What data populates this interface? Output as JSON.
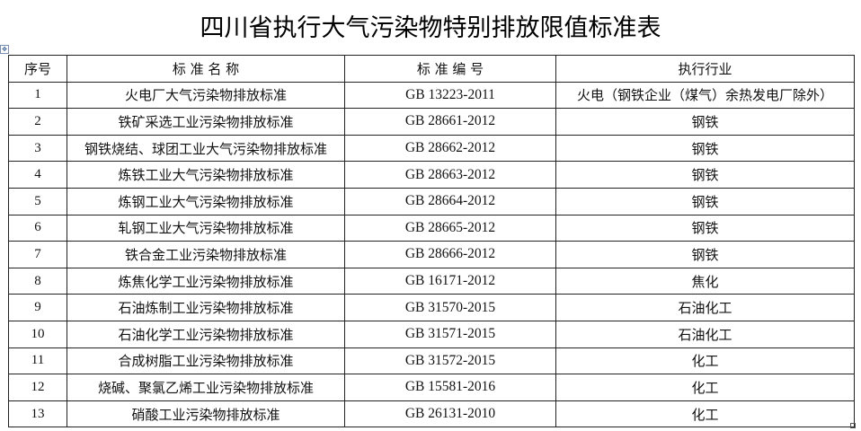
{
  "title": "四川省执行大气污染物特别排放限值标准表",
  "table": {
    "headers": [
      "序号",
      "标 准 名 称",
      "标 准 编 号",
      "执行行业"
    ],
    "rows": [
      [
        "1",
        "火电厂大气污染物排放标准",
        "GB 13223-2011",
        "火电（钢铁企业（煤气）余热发电厂除外）"
      ],
      [
        "2",
        "铁矿采选工业污染物排放标准",
        "GB 28661-2012",
        "钢铁"
      ],
      [
        "3",
        "钢铁烧结、球团工业大气污染物排放标准",
        "GB 28662-2012",
        "钢铁"
      ],
      [
        "4",
        "炼铁工业大气污染物排放标准",
        "GB 28663-2012",
        "钢铁"
      ],
      [
        "5",
        "炼钢工业大气污染物排放标准",
        "GB 28664-2012",
        "钢铁"
      ],
      [
        "6",
        "轧钢工业大气污染物排放标准",
        "GB 28665-2012",
        "钢铁"
      ],
      [
        "7",
        "铁合金工业污染物排放标准",
        "GB 28666-2012",
        "钢铁"
      ],
      [
        "8",
        "炼焦化学工业污染物排放标准",
        "GB 16171-2012",
        "焦化"
      ],
      [
        "9",
        "石油炼制工业污染物排放标准",
        "GB 31570-2015",
        "石油化工"
      ],
      [
        "10",
        "石油化学工业污染物排放标准",
        "GB 31571-2015",
        "石油化工"
      ],
      [
        "11",
        "合成树脂工业污染物排放标准",
        "GB 31572-2015",
        "化工"
      ],
      [
        "12",
        "烧碱、聚氯乙烯工业污染物排放标准",
        "GB 15581-2016",
        "化工"
      ],
      [
        "13",
        "硝酸工业污染物排放标准",
        "GB 26131-2010",
        "化工"
      ]
    ]
  }
}
